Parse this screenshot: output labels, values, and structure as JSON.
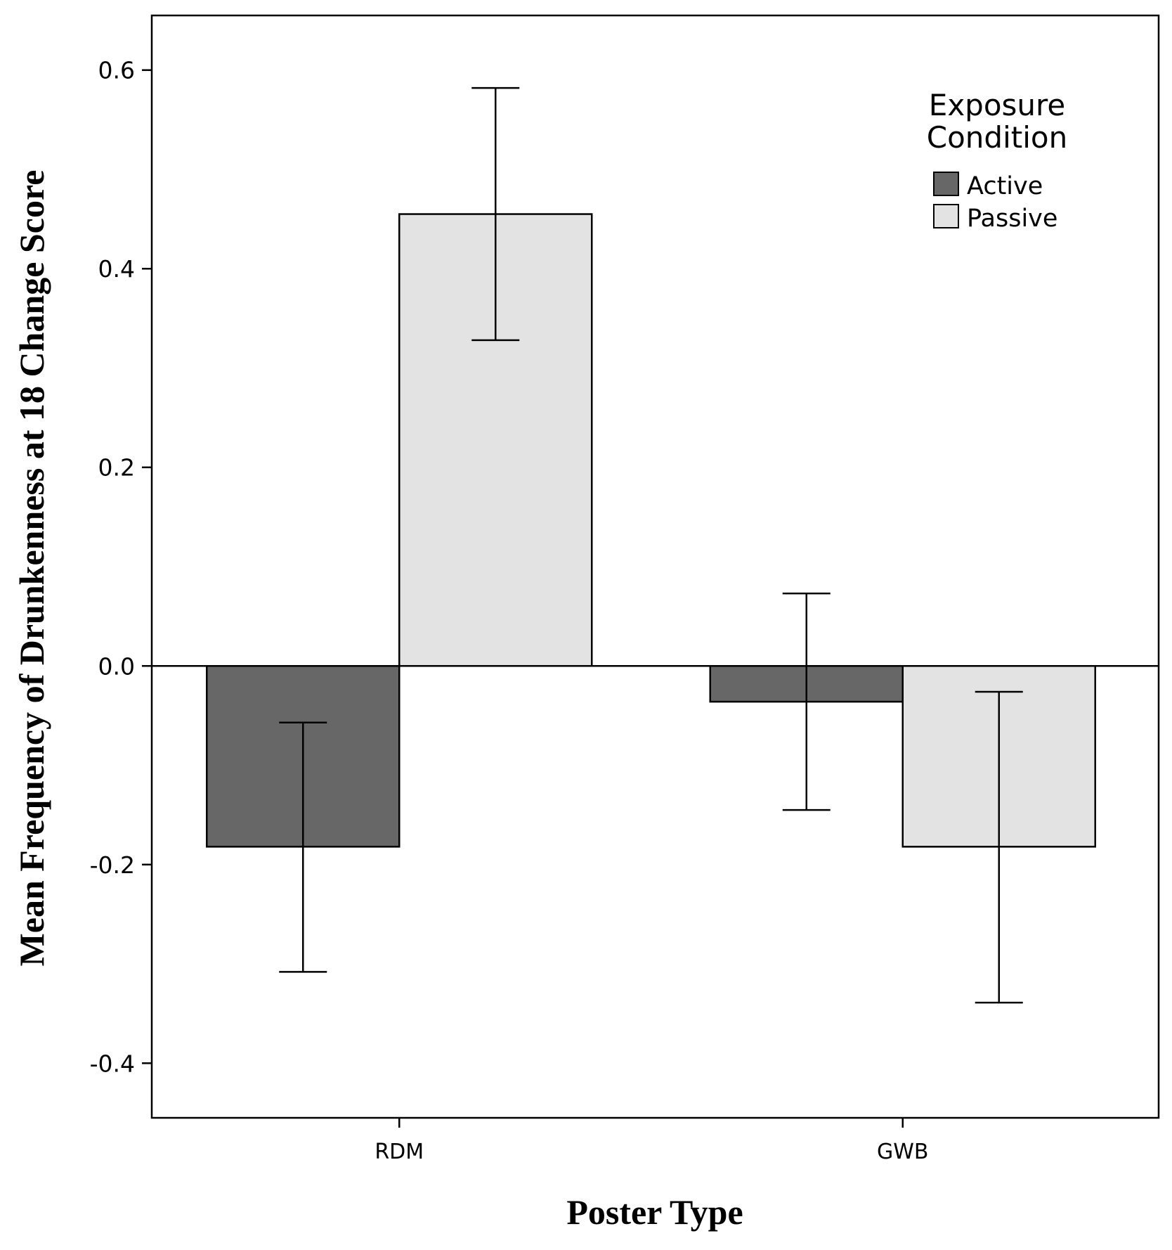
{
  "chart_data": {
    "type": "bar",
    "title": "",
    "xlabel": "Poster Type",
    "ylabel": "Mean Frequency of Drunkenness at 18 Change Score",
    "categories": [
      "RDM",
      "GWB"
    ],
    "ylim": [
      -0.455,
      0.655
    ],
    "yticks": [
      -0.4,
      -0.2,
      0.0,
      0.2,
      0.4,
      0.6
    ],
    "ytick_labels": [
      "-0.4",
      "-0.2",
      "0.0",
      "0.2",
      "0.4",
      "0.6"
    ],
    "grid": false,
    "legend": {
      "title_line1": "Exposure",
      "title_line2": "Condition",
      "placement": "top-right"
    },
    "series": [
      {
        "name": "Active",
        "color": "#676767",
        "values": [
          -0.182,
          -0.036
        ],
        "error_low": [
          -0.308,
          -0.145
        ],
        "error_high": [
          -0.057,
          0.073
        ]
      },
      {
        "name": "Passive",
        "color": "#e3e3e3",
        "values": [
          0.455,
          -0.182
        ],
        "error_low": [
          0.328,
          -0.339
        ],
        "error_high": [
          0.582,
          -0.026
        ]
      }
    ]
  }
}
